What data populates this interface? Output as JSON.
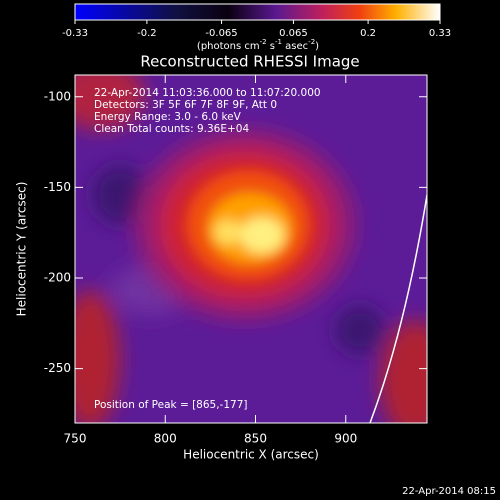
{
  "chart_data": {
    "type": "image",
    "title": "Reconstructed RHESSI Image",
    "xlabel": "Heliocentric X (arcsec)",
    "ylabel": "Heliocentric Y (arcsec)",
    "xlim": [
      750,
      945
    ],
    "xticks": [
      750,
      800,
      850,
      900
    ],
    "ylim": [
      -280,
      -88
    ],
    "yticks": [
      -100,
      -150,
      -200,
      -250
    ],
    "colorbar": {
      "lim": [
        -0.33,
        0.33
      ],
      "ticks": [
        -0.33,
        -0.2,
        {
          "value": -0.065,
          "label": "-0.065"
        },
        0.065,
        0.2,
        0.33
      ],
      "units": [
        "(photons cm",
        "-2",
        " s",
        "-1",
        " asec",
        "-2",
        ")"
      ]
    },
    "annotations": [
      "22-Apr-2014 11:03:36.000 to 11:07:20.000",
      "Detectors: 3F 5F 6F 7F 8F 9F, Att 0",
      "Energy Range: 3.0 - 6.0 keV",
      "Clean     Total counts: 9.36E+04"
    ],
    "peak_label": "Position of Peak = [865,-177]",
    "footer": "22-Apr-2014 08:15"
  }
}
